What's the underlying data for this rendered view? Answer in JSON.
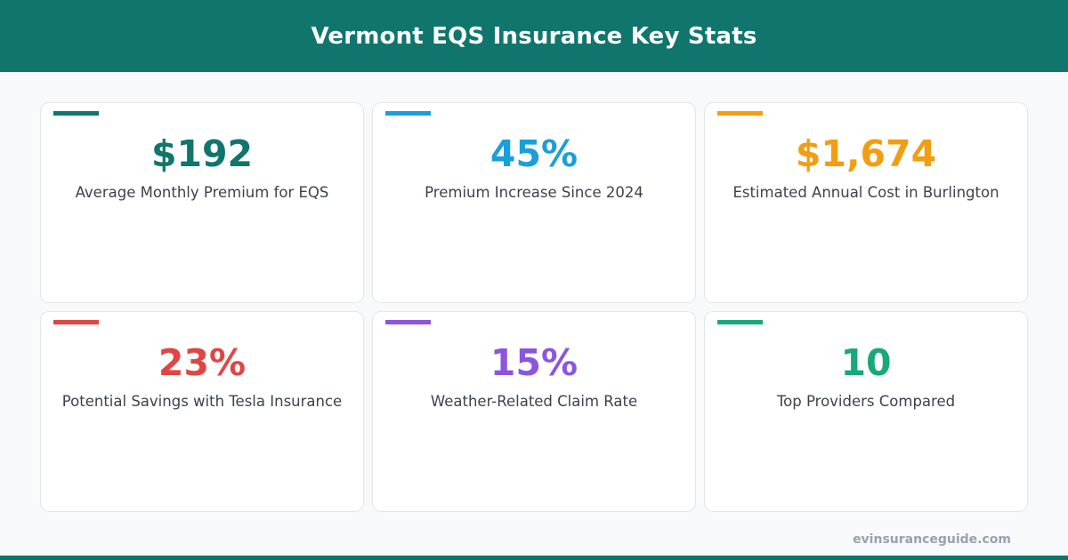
{
  "header": {
    "title": "Vermont EQS Insurance Key Stats",
    "background": "#10766d"
  },
  "stats": [
    {
      "value": "$192",
      "label": "Average Monthly Premium for EQS",
      "color": "#10766d"
    },
    {
      "value": "45%",
      "label": "Premium Increase Since 2024",
      "color": "#1a9fdc"
    },
    {
      "value": "$1,674",
      "label": "Estimated Annual Cost in Burlington",
      "color": "#f29d12"
    },
    {
      "value": "23%",
      "label": "Potential Savings with Tesla Insurance",
      "color": "#e04545"
    },
    {
      "value": "15%",
      "label": "Weather-Related Claim Rate",
      "color": "#8b55e0"
    },
    {
      "value": "10",
      "label": "Top Providers Compared",
      "color": "#17a97b"
    }
  ],
  "footer": {
    "url": "evinsuranceguide.com"
  }
}
